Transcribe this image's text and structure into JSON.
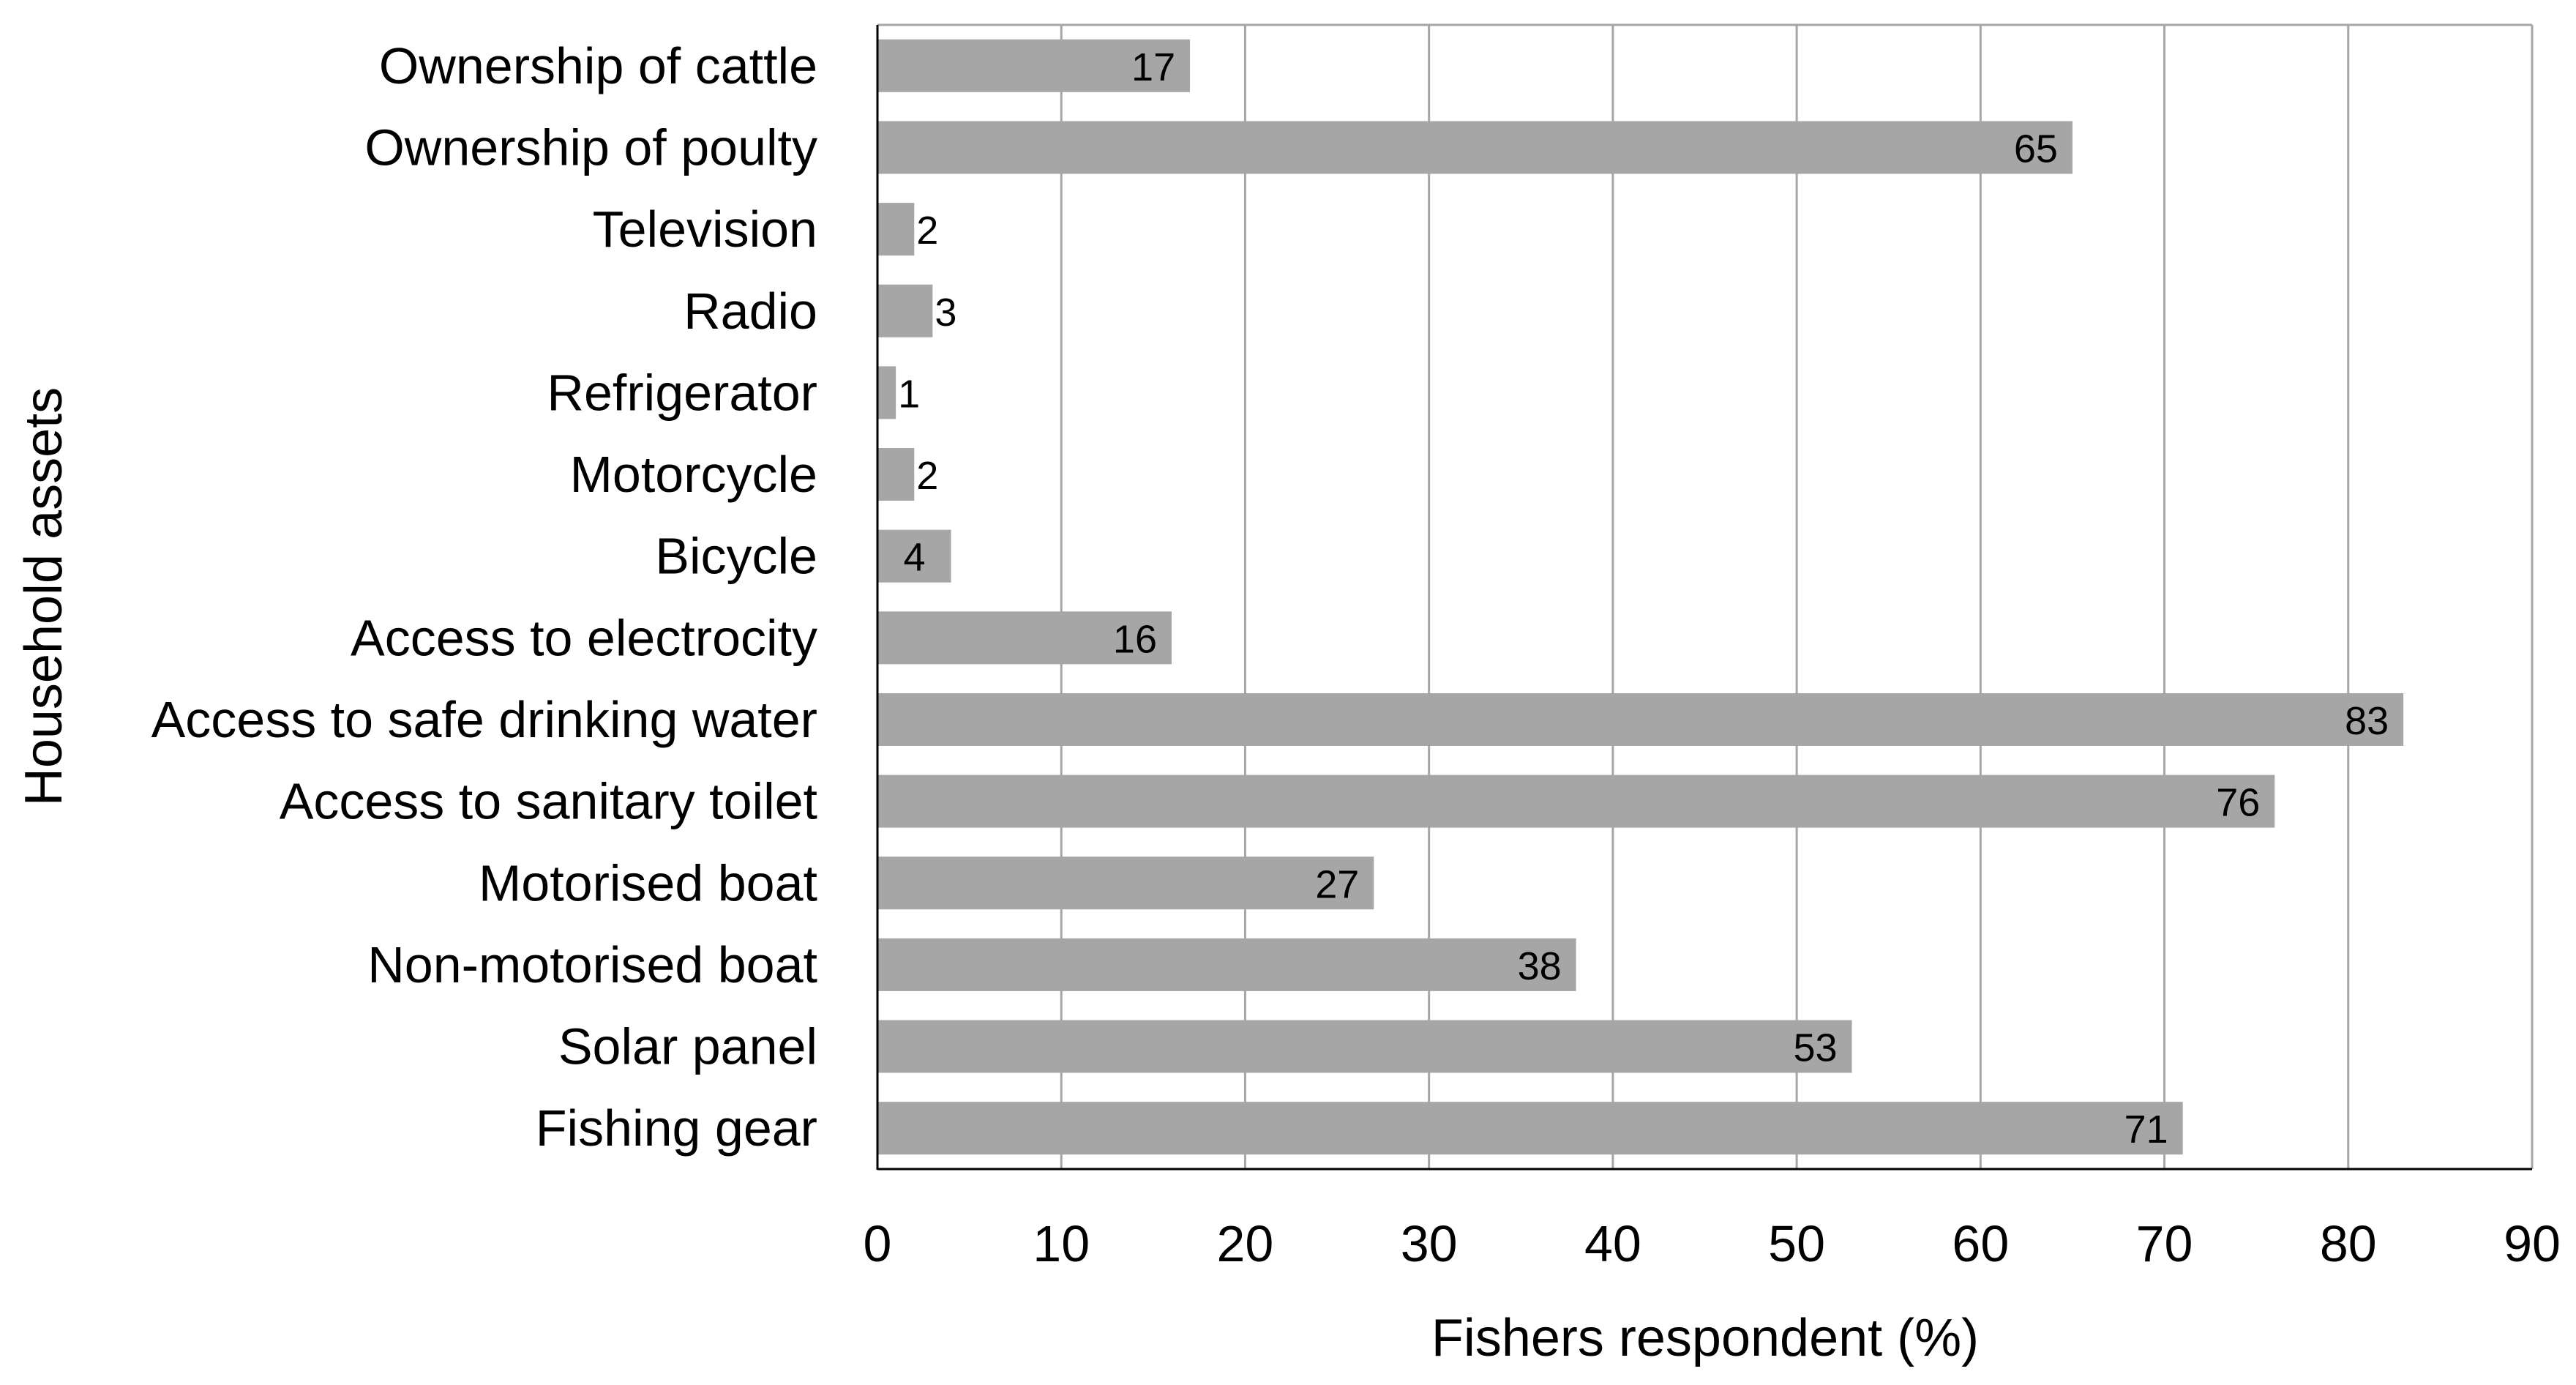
{
  "chart_data": {
    "type": "bar",
    "orientation": "horizontal",
    "title": "",
    "xlabel": "Fishers respondent (%)",
    "ylabel": "Household assets",
    "xlim": [
      0,
      90
    ],
    "x_ticks": [
      0,
      10,
      20,
      30,
      40,
      50,
      60,
      70,
      80,
      90
    ],
    "grid": "vertical gridlines",
    "legend": "none",
    "bar_color": "#a6a6a6",
    "grid_color": "#a6a6a6",
    "categories": [
      "Ownership of cattle",
      "Ownership of poulty",
      "Television",
      "Radio",
      "Refrigerator",
      "Motorcycle",
      "Bicycle",
      "Access to electrocity",
      "Access to safe drinking water",
      "Access to sanitary toilet",
      "Motorised boat",
      "Non-motorised boat",
      "Solar panel",
      "Fishing gear"
    ],
    "values": [
      17,
      65,
      2,
      3,
      1,
      2,
      4,
      16,
      83,
      76,
      27,
      38,
      53,
      71
    ]
  }
}
